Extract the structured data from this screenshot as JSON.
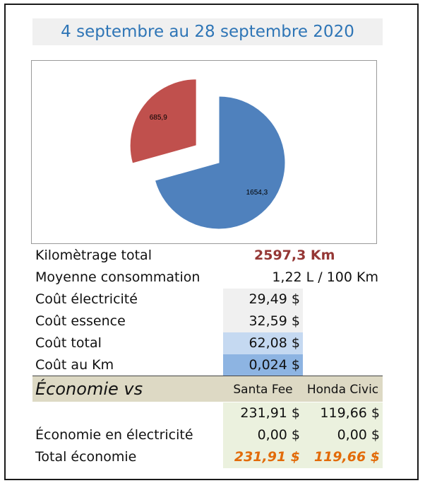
{
  "title": "4 septembre au 28 septembre 2020",
  "chart_data": {
    "type": "pie",
    "title": "",
    "values": [
      1654.3,
      685.9
    ],
    "data_labels": [
      "1654,3",
      "685,9"
    ],
    "colors": [
      "#4f81bd",
      "#c0504d"
    ],
    "exploded": [
      false,
      true
    ]
  },
  "stats": {
    "km_label": "Kilomètrage total",
    "km_value": "2597,3 Km",
    "conso_label": "Moyenne consommation",
    "conso_value": "1,22 L / 100 Km",
    "elec_label": "Coût électricité",
    "elec_value": "29,49 $",
    "essence_label": "Coût essence",
    "essence_value": "32,59 $",
    "total_label": "Coût total",
    "total_value": "62,08 $",
    "perkm_label": "Coût au Km",
    "perkm_value": "0,024 $"
  },
  "economy": {
    "title": "Économie vs",
    "col1": "Santa Fee",
    "col2": "Honda Civic",
    "row1_label": "",
    "row1_col1": "231,91 $",
    "row1_col2": "119,66 $",
    "row2_label": "Économie en électricité",
    "row2_col1": "0,00 $",
    "row2_col2": "0,00 $",
    "row3_label": "Total économie",
    "row3_col1": "231,91 $",
    "row3_col2": "119,66 $"
  }
}
